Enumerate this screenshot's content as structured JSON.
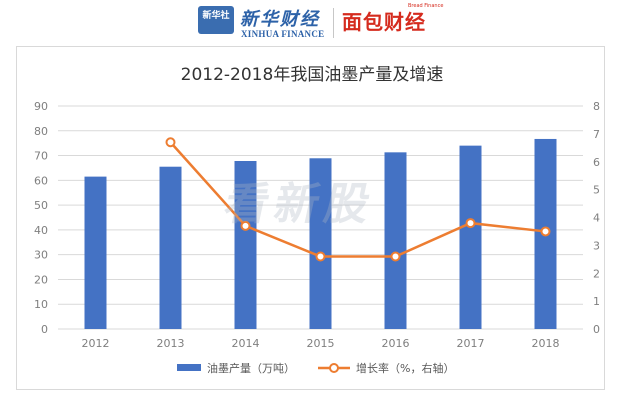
{
  "header": {
    "logo_badge": "新华社",
    "brand_name": "新华财经",
    "brand_english": "XINHUA FINANCE",
    "partner_name": "面包财经",
    "partner_english": "Bread Finance",
    "brand_color": "#2d62a8",
    "partner_color": "#d52b1e"
  },
  "watermark": "看新股",
  "chart_data": {
    "type": "bar+line",
    "title": "2012-2018年我国油墨产量及增速",
    "categories": [
      "2012",
      "2013",
      "2014",
      "2015",
      "2016",
      "2017",
      "2018"
    ],
    "y_left": {
      "ylim": [
        0,
        90
      ],
      "ticks": [
        0,
        10,
        20,
        30,
        40,
        50,
        60,
        70,
        80,
        90
      ]
    },
    "y_right": {
      "ylim": [
        0,
        8
      ],
      "ticks": [
        0,
        1,
        2,
        3,
        4,
        5,
        6,
        7,
        8
      ]
    },
    "series": [
      {
        "name": "油墨产量（万吨）",
        "type": "bar",
        "axis": "left",
        "color": "#4472c4",
        "values": [
          61.5,
          65.5,
          67.8,
          68.9,
          71.3,
          74.0,
          76.7
        ]
      },
      {
        "name": "增长率（%，右轴）",
        "type": "line",
        "axis": "right",
        "color": "#ed7d31",
        "values": [
          null,
          6.7,
          3.7,
          2.6,
          2.6,
          3.8,
          3.5
        ]
      }
    ],
    "grid": true,
    "legend": "bottom"
  }
}
